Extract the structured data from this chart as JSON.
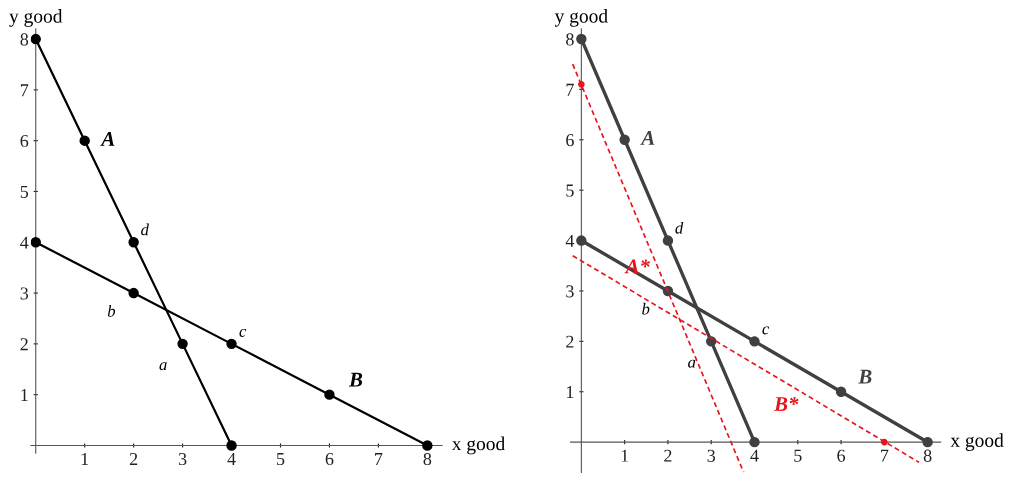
{
  "chart_data": [
    {
      "type": "line",
      "xlabel": "x good",
      "ylabel": "y good",
      "xlim": [
        -0.1,
        8.3
      ],
      "ylim": [
        -0.15,
        8.2
      ],
      "xticks": [
        1,
        2,
        3,
        4,
        5,
        6,
        7,
        8
      ],
      "yticks": [
        1,
        2,
        3,
        4,
        5,
        6,
        7,
        8
      ],
      "marker": "circle",
      "line_style": "solid",
      "series": [
        {
          "name": "A",
          "color": "#000000",
          "x": [
            0,
            1,
            2,
            3,
            4
          ],
          "values": [
            8,
            6,
            4,
            2,
            0
          ]
        },
        {
          "name": "B",
          "color": "#000000",
          "x": [
            0,
            2,
            4,
            6,
            8
          ],
          "values": [
            4,
            3,
            2,
            1,
            0
          ]
        }
      ],
      "annotations": [
        {
          "text": "a",
          "x": 3,
          "y": 2
        },
        {
          "text": "b",
          "x": 2,
          "y": 3
        },
        {
          "text": "c",
          "x": 4,
          "y": 2
        },
        {
          "text": "d",
          "x": 2,
          "y": 4
        }
      ]
    },
    {
      "type": "line",
      "xlabel": "x good",
      "ylabel": "y good",
      "xlim": [
        -0.25,
        8.3
      ],
      "ylim": [
        -0.6,
        8.2
      ],
      "xticks": [
        1,
        2,
        3,
        4,
        5,
        6,
        7,
        8
      ],
      "yticks": [
        1,
        2,
        3,
        4,
        5,
        6,
        7,
        8
      ],
      "marker": "circle",
      "line_style": "solid",
      "series": [
        {
          "name": "A",
          "color": "#404040",
          "x": [
            0,
            1,
            2,
            3,
            4
          ],
          "values": [
            8,
            6,
            4,
            2,
            0
          ]
        },
        {
          "name": "B",
          "color": "#404040",
          "x": [
            0,
            2,
            4,
            6,
            8
          ],
          "values": [
            4,
            3,
            2,
            1,
            0
          ]
        },
        {
          "name": "A*",
          "color": "#e8141c",
          "x": [
            -0.2,
            3.75
          ],
          "values": [
            7.5,
            -0.6
          ],
          "marker": "none",
          "line_style": "dashed"
        },
        {
          "name": "B*",
          "color": "#e8141c",
          "x": [
            -0.2,
            7.8
          ],
          "values": [
            3.7,
            -0.4
          ],
          "marker": "none",
          "line_style": "dashed"
        },
        {
          "type": "scatter",
          "color": "#e8141c",
          "x": [
            0,
            7
          ],
          "values": [
            7.1,
            0
          ]
        }
      ],
      "annotations": [
        {
          "text": "a",
          "x": 3,
          "y": 2
        },
        {
          "text": "b",
          "x": 2,
          "y": 3
        },
        {
          "text": "c",
          "x": 4,
          "y": 2
        },
        {
          "text": "d",
          "x": 2,
          "y": 4
        }
      ]
    }
  ]
}
